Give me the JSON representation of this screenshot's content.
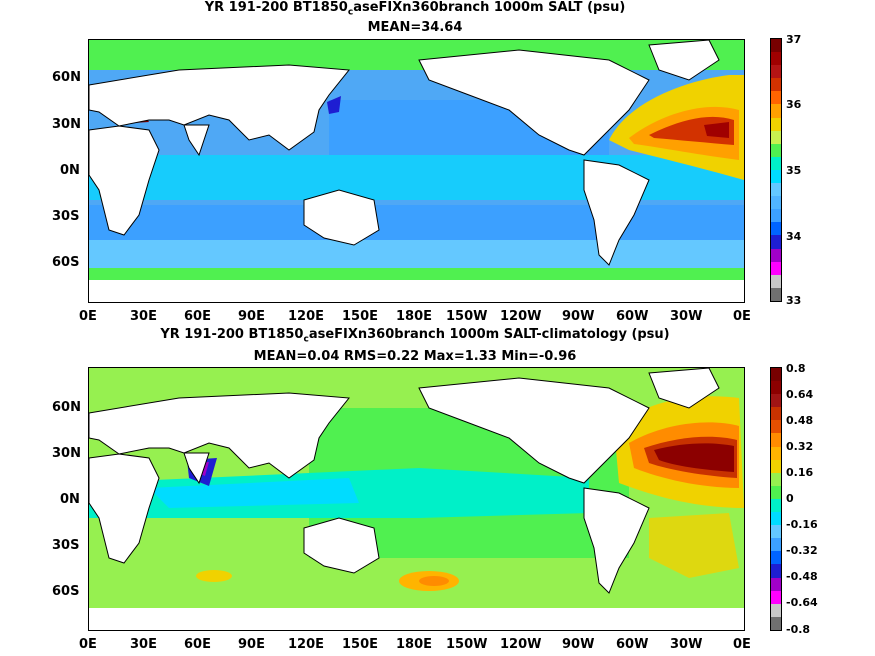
{
  "panels": [
    {
      "title_prefix": "YR 191-200 BT1850",
      "title_sub": "c",
      "title_suffix": "aseFIXn360branch 1000m SALT (psu)",
      "stats": "MEAN=34.64",
      "lat_labels": [
        "60N",
        "30N",
        "0N",
        "30S",
        "60S"
      ],
      "lon_labels": [
        "0E",
        "30E",
        "60E",
        "90E",
        "120E",
        "150E",
        "180E",
        "150W",
        "120W",
        "90W",
        "60W",
        "30W",
        "0E"
      ],
      "colorbar_labels": [
        "37",
        "36",
        "35",
        "34",
        "33"
      ],
      "colorbar_colors": [
        "#707070",
        "#c8c8c8",
        "#ff00ff",
        "#a000c8",
        "#1e1ed2",
        "#0064ff",
        "#3ca0ff",
        "#50b4ff",
        "#64c8ff",
        "#00dcff",
        "#00f0c8",
        "#50f050",
        "#c8f050",
        "#f0d200",
        "#ffa000",
        "#ff6400",
        "#d23200",
        "#b41414",
        "#a00000",
        "#780000"
      ]
    },
    {
      "title_prefix": "YR 191-200 BT1850",
      "title_sub": "c",
      "title_suffix": "aseFIXn360branch 1000m SALT-climatology (psu)",
      "stats": "MEAN=0.04   RMS=0.22   Max=1.33   Min=-0.96",
      "lat_labels": [
        "60N",
        "30N",
        "0N",
        "30S",
        "60S"
      ],
      "lon_labels": [
        "0E",
        "30E",
        "60E",
        "90E",
        "120E",
        "150E",
        "180E",
        "150W",
        "120W",
        "90W",
        "60W",
        "30W",
        "0E"
      ],
      "colorbar_labels": [
        "0.8",
        "0.64",
        "0.48",
        "0.32",
        "0.16",
        "0",
        "-0.16",
        "-0.32",
        "-0.48",
        "-0.64",
        "-0.8"
      ],
      "colorbar_colors": [
        "#707070",
        "#c8c8c8",
        "#ff00ff",
        "#a000c8",
        "#1e1ed2",
        "#0064ff",
        "#3ca0ff",
        "#64c8ff",
        "#00dcff",
        "#00f0c8",
        "#50f050",
        "#96f050",
        "#f0d200",
        "#ffb400",
        "#ff8c00",
        "#e65000",
        "#c83200",
        "#a01414",
        "#8c0000",
        "#780000"
      ]
    }
  ],
  "colors": {
    "land": "#ffffff",
    "coast": "#000000"
  }
}
